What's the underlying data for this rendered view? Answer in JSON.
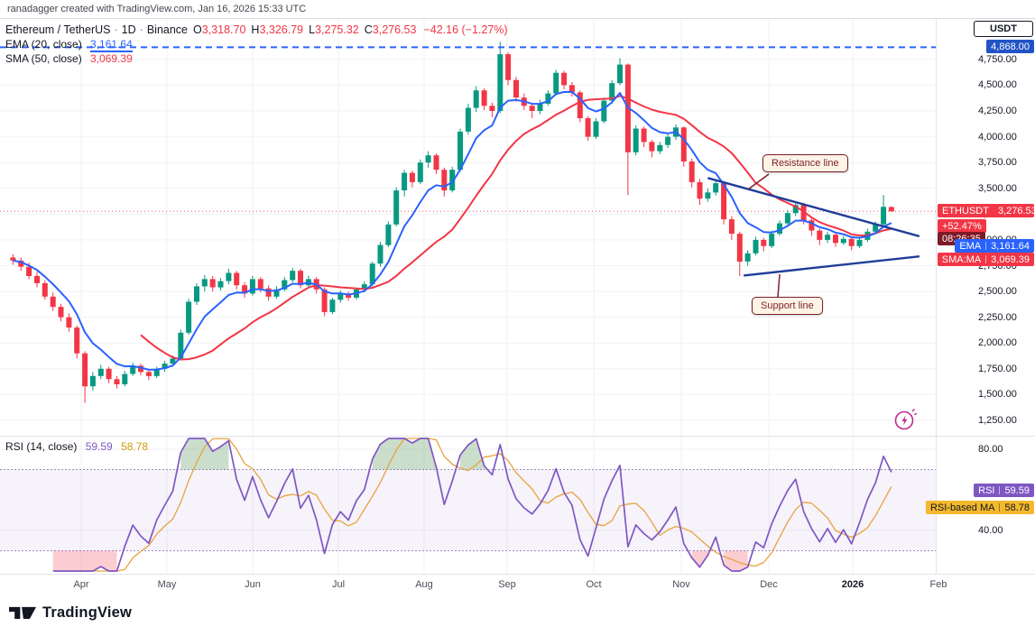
{
  "attribution": "ranadagger created with TradingView.com, Jan 16, 2026 15:33 UTC",
  "header": {
    "title": "Ethereum / TetherUS",
    "separator": "·",
    "interval": "1D",
    "exchange": "Binance",
    "ohlc": [
      {
        "label": "O",
        "value": "3,318.70"
      },
      {
        "label": "H",
        "value": "3,326.79"
      },
      {
        "label": "L",
        "value": "3,275.32"
      },
      {
        "label": "C",
        "value": "3,276.53"
      }
    ],
    "change": "−42.16 (−1.27%)"
  },
  "indicators": {
    "ema": {
      "label": "EMA (20, close)",
      "value": "3,161.64",
      "color": "#2962ff"
    },
    "sma": {
      "label": "SMA (50, close)",
      "value": "3,069.39",
      "color": "#f23645"
    },
    "rsi": {
      "label": "RSI (14, close)",
      "value": "59.59",
      "ma_value": "58.78",
      "color": "#7e57c2",
      "ma_color": "#cf9c0a"
    }
  },
  "price_axis": {
    "currency": "USDT",
    "ath_badge": "4,868.00",
    "ticks": [
      "4,750.00",
      "4,500.00",
      "4,250.00",
      "4,000.00",
      "3,750.00",
      "3,500.00",
      "3,250.00",
      "3,000.00",
      "2,750.00",
      "2,500.00",
      "2,250.00",
      "2,000.00",
      "1,750.00",
      "1,500.00",
      "1,250.00"
    ],
    "last_badge": {
      "symbol": "ETHUSDT",
      "price": "3,276.53",
      "change_pct": "+52.47%",
      "countdown": "08:26:35"
    },
    "ema_badge": {
      "label": "EMA",
      "value": "3,161.64"
    },
    "sma_badge": {
      "label": "SMA:MA",
      "value": "3,069.39"
    }
  },
  "rsi_axis": {
    "ticks": [
      "80.00",
      "40.00"
    ],
    "rsi_badge": {
      "label": "RSI",
      "value": "59.59"
    },
    "rsi_ma_badge": {
      "label": "RSI-based MA",
      "value": "58.78"
    }
  },
  "time_axis": {
    "labels": [
      "Apr",
      "May",
      "Jun",
      "Jul",
      "Aug",
      "Sep",
      "Oct",
      "Nov",
      "Dec",
      "2026",
      "Feb"
    ]
  },
  "annotations": {
    "resistance": "Resistance line",
    "support": "Support line"
  },
  "footer": {
    "brand": "TradingView"
  },
  "chart_data": [
    {
      "type": "candlestick",
      "symbol": "ETHUSDT",
      "exchange": "Binance",
      "interval": "1D (downsampled to ~3-day bars)",
      "x_start": "2025-03",
      "x_end": "2026-01-16",
      "x_month_labels": [
        "Apr",
        "May",
        "Jun",
        "Jul",
        "Aug",
        "Sep",
        "Oct",
        "Nov",
        "Dec",
        "2026",
        "Feb"
      ],
      "ylim": [
        1250,
        4950
      ],
      "y_unit": "USDT",
      "y_ticks": [
        4750,
        4500,
        4250,
        4000,
        3750,
        3500,
        3250,
        3000,
        2750,
        2500,
        2250,
        2000,
        1750,
        1500,
        1250
      ],
      "up_color": "#089981",
      "down_color": "#f23645",
      "last_ohlc": {
        "open": 3318.7,
        "high": 3326.79,
        "low": 3275.32,
        "close": 3276.53,
        "change": -42.16,
        "change_pct": -1.27
      },
      "overlays": [
        {
          "name": "EMA (20, close)",
          "color": "#2962ff",
          "last": 3161.64
        },
        {
          "name": "SMA (50, close)",
          "color": "#f23645",
          "last": 3069.39
        }
      ],
      "levels": [
        {
          "name": "all-time-high-line",
          "price": 4868.0,
          "style": "dashed",
          "color": "#2962ff"
        },
        {
          "name": "last-price-line",
          "price": 3276.53,
          "style": "dotted",
          "color": "#f23645"
        }
      ],
      "trendlines": [
        {
          "name": "resistance",
          "from_index": 87,
          "from_price": 3600,
          "to_index": 113.5,
          "to_price": 3035,
          "color": "#1f3d99"
        },
        {
          "name": "support",
          "from_index": 91.5,
          "from_price": 2655,
          "to_index": 113.5,
          "to_price": 2840,
          "color": "#1f3d99"
        }
      ],
      "ohlc": [
        [
          2830,
          2860,
          2760,
          2800
        ],
        [
          2800,
          2830,
          2700,
          2740
        ],
        [
          2740,
          2780,
          2620,
          2650
        ],
        [
          2650,
          2690,
          2540,
          2580
        ],
        [
          2580,
          2610,
          2420,
          2450
        ],
        [
          2450,
          2490,
          2310,
          2350
        ],
        [
          2350,
          2380,
          2210,
          2250
        ],
        [
          2250,
          2290,
          2110,
          2150
        ],
        [
          2150,
          2170,
          1850,
          1900
        ],
        [
          1900,
          1920,
          1420,
          1580
        ],
        [
          1580,
          1720,
          1540,
          1680
        ],
        [
          1680,
          1790,
          1650,
          1750
        ],
        [
          1750,
          1770,
          1610,
          1650
        ],
        [
          1650,
          1680,
          1560,
          1600
        ],
        [
          1600,
          1730,
          1580,
          1700
        ],
        [
          1700,
          1810,
          1680,
          1780
        ],
        [
          1780,
          1800,
          1690,
          1720
        ],
        [
          1720,
          1750,
          1640,
          1680
        ],
        [
          1680,
          1770,
          1660,
          1750
        ],
        [
          1750,
          1830,
          1720,
          1800
        ],
        [
          1800,
          1880,
          1770,
          1850
        ],
        [
          1850,
          2130,
          1830,
          2100
        ],
        [
          2100,
          2430,
          2080,
          2400
        ],
        [
          2400,
          2580,
          2370,
          2550
        ],
        [
          2550,
          2660,
          2500,
          2620
        ],
        [
          2620,
          2650,
          2500,
          2540
        ],
        [
          2540,
          2630,
          2510,
          2600
        ],
        [
          2600,
          2720,
          2570,
          2680
        ],
        [
          2680,
          2700,
          2520,
          2560
        ],
        [
          2560,
          2590,
          2440,
          2480
        ],
        [
          2480,
          2650,
          2460,
          2620
        ],
        [
          2620,
          2640,
          2490,
          2530
        ],
        [
          2530,
          2560,
          2410,
          2450
        ],
        [
          2450,
          2550,
          2430,
          2520
        ],
        [
          2520,
          2640,
          2500,
          2610
        ],
        [
          2610,
          2730,
          2590,
          2700
        ],
        [
          2700,
          2720,
          2530,
          2560
        ],
        [
          2560,
          2650,
          2540,
          2620
        ],
        [
          2620,
          2640,
          2480,
          2520
        ],
        [
          2520,
          2540,
          2260,
          2300
        ],
        [
          2300,
          2440,
          2280,
          2420
        ],
        [
          2420,
          2510,
          2390,
          2480
        ],
        [
          2480,
          2500,
          2410,
          2440
        ],
        [
          2440,
          2540,
          2420,
          2520
        ],
        [
          2520,
          2600,
          2490,
          2570
        ],
        [
          2570,
          2790,
          2550,
          2770
        ],
        [
          2770,
          2980,
          2740,
          2950
        ],
        [
          2950,
          3180,
          2930,
          3150
        ],
        [
          3150,
          3510,
          3130,
          3480
        ],
        [
          3480,
          3680,
          3420,
          3650
        ],
        [
          3650,
          3670,
          3510,
          3560
        ],
        [
          3560,
          3780,
          3540,
          3750
        ],
        [
          3750,
          3860,
          3700,
          3820
        ],
        [
          3820,
          3840,
          3640,
          3680
        ],
        [
          3680,
          3700,
          3420,
          3480
        ],
        [
          3480,
          3710,
          3460,
          3680
        ],
        [
          3680,
          4080,
          3660,
          4050
        ],
        [
          4050,
          4320,
          4020,
          4280
        ],
        [
          4280,
          4490,
          4240,
          4450
        ],
        [
          4450,
          4470,
          4260,
          4300
        ],
        [
          4300,
          4330,
          4190,
          4250
        ],
        [
          4250,
          4920,
          4230,
          4800
        ],
        [
          4800,
          4820,
          4500,
          4550
        ],
        [
          4550,
          4580,
          4340,
          4380
        ],
        [
          4380,
          4420,
          4260,
          4300
        ],
        [
          4300,
          4330,
          4180,
          4250
        ],
        [
          4250,
          4360,
          4220,
          4320
        ],
        [
          4320,
          4450,
          4300,
          4420
        ],
        [
          4420,
          4650,
          4400,
          4620
        ],
        [
          4620,
          4640,
          4460,
          4500
        ],
        [
          4500,
          4530,
          4390,
          4430
        ],
        [
          4430,
          4450,
          4140,
          4180
        ],
        [
          4180,
          4200,
          3960,
          4000
        ],
        [
          4000,
          4180,
          3980,
          4150
        ],
        [
          4150,
          4380,
          4130,
          4350
        ],
        [
          4350,
          4550,
          4320,
          4520
        ],
        [
          4520,
          4762,
          4500,
          4700
        ],
        [
          4700,
          4710,
          3435,
          3850
        ],
        [
          3850,
          4110,
          3820,
          4080
        ],
        [
          4080,
          4100,
          3900,
          3950
        ],
        [
          3950,
          3970,
          3800,
          3860
        ],
        [
          3860,
          3950,
          3830,
          3920
        ],
        [
          3920,
          4030,
          3890,
          4000
        ],
        [
          4000,
          4120,
          3970,
          4090
        ],
        [
          4090,
          4100,
          3710,
          3760
        ],
        [
          3760,
          3790,
          3510,
          3560
        ],
        [
          3560,
          3590,
          3340,
          3400
        ],
        [
          3400,
          3500,
          3370,
          3460
        ],
        [
          3460,
          3580,
          3430,
          3550
        ],
        [
          3550,
          3570,
          3150,
          3200
        ],
        [
          3200,
          3230,
          3000,
          3060
        ],
        [
          3060,
          3080,
          2650,
          2790
        ],
        [
          2790,
          2900,
          2750,
          2870
        ],
        [
          2870,
          3030,
          2850,
          3000
        ],
        [
          3000,
          3020,
          2890,
          2940
        ],
        [
          2940,
          3090,
          2920,
          3060
        ],
        [
          3060,
          3190,
          3040,
          3160
        ],
        [
          3160,
          3290,
          3140,
          3260
        ],
        [
          3260,
          3370,
          3230,
          3340
        ],
        [
          3340,
          3360,
          3150,
          3190
        ],
        [
          3190,
          3210,
          3040,
          3090
        ],
        [
          3090,
          3110,
          2950,
          3000
        ],
        [
          3000,
          3080,
          2970,
          3050
        ],
        [
          3050,
          3070,
          2930,
          2970
        ],
        [
          2970,
          3040,
          2950,
          3010
        ],
        [
          3010,
          3030,
          2900,
          2940
        ],
        [
          2940,
          3030,
          2920,
          3000
        ],
        [
          3000,
          3110,
          2980,
          3080
        ],
        [
          3080,
          3180,
          3060,
          3150
        ],
        [
          3150,
          3435,
          3130,
          3320
        ],
        [
          3318.7,
          3326.79,
          3275.32,
          3276.53
        ]
      ]
    },
    {
      "type": "line",
      "name": "RSI (14, close)",
      "period_days": 14,
      "ma_period_days": 14,
      "last": 59.59,
      "ma_last": 58.78,
      "band": [
        30,
        70
      ],
      "y_ticks": [
        80,
        40
      ],
      "color": "#7e57c2",
      "ma_color": "#e8a33d",
      "derived_from": "closes of the candlestick series above"
    }
  ]
}
